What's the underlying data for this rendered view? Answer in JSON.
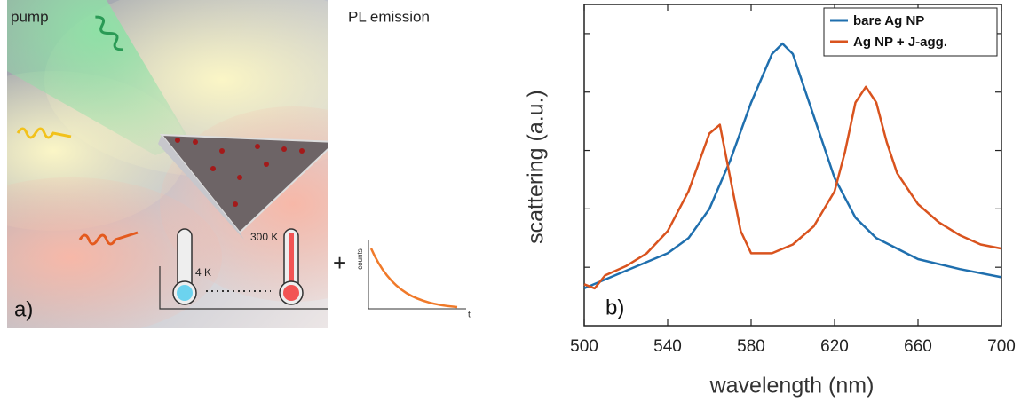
{
  "illustration": {
    "pump": "pump",
    "pl_emission": "PL emission",
    "temp_low": "4 K",
    "temp_high": "300 K",
    "plus": "+",
    "decay_ylabel": "counts",
    "decay_xlabel": "t",
    "panel_label": "a)"
  },
  "chart_data": {
    "type": "line",
    "panel_label": "b)",
    "xlabel": "wavelength (nm)",
    "ylabel": "scattering (a.u.)",
    "xlim": [
      500,
      700
    ],
    "xticks": [
      500,
      540,
      580,
      620,
      660,
      700
    ],
    "ylim": [
      0,
      5.5
    ],
    "yticks": [
      1,
      2,
      3,
      4,
      5
    ],
    "legend": "upper right",
    "series": [
      {
        "name": "bare Ag NP",
        "color": "#1f6fae",
        "x": [
          500,
          520,
          540,
          550,
          560,
          570,
          580,
          590,
          595,
          600,
          610,
          620,
          630,
          640,
          660,
          680,
          700
        ],
        "values": [
          0.64,
          0.94,
          1.24,
          1.5,
          2.0,
          2.83,
          3.82,
          4.65,
          4.83,
          4.65,
          3.59,
          2.53,
          1.85,
          1.5,
          1.14,
          0.97,
          0.83
        ]
      },
      {
        "name": "Ag NP + J-agg.",
        "color": "#d9531e",
        "x": [
          500,
          505,
          510,
          520,
          530,
          540,
          550,
          560,
          565,
          570,
          575,
          580,
          590,
          600,
          610,
          620,
          625,
          630,
          635,
          640,
          645,
          650,
          660,
          670,
          680,
          690,
          700
        ],
        "values": [
          0.71,
          0.64,
          0.86,
          1.02,
          1.24,
          1.62,
          2.3,
          3.29,
          3.44,
          2.53,
          1.62,
          1.24,
          1.24,
          1.39,
          1.7,
          2.3,
          2.98,
          3.82,
          4.09,
          3.82,
          3.14,
          2.61,
          2.08,
          1.77,
          1.55,
          1.39,
          1.32
        ]
      }
    ]
  }
}
